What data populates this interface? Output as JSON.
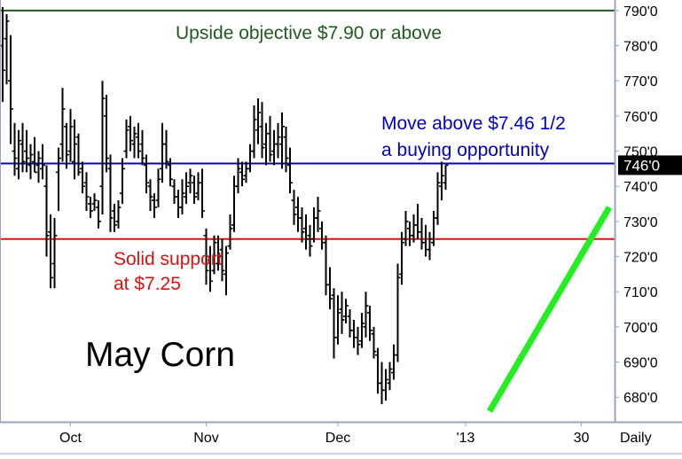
{
  "chart_data": {
    "type": "ohlc",
    "title": "May Corn",
    "y_axis": {
      "min": 673,
      "max": 793,
      "ticks": [
        {
          "value": 680,
          "label": "680'0"
        },
        {
          "value": 690,
          "label": "690'0"
        },
        {
          "value": 700,
          "label": "700'0"
        },
        {
          "value": 710,
          "label": "710'0"
        },
        {
          "value": 720,
          "label": "720'0"
        },
        {
          "value": 730,
          "label": "730'0"
        },
        {
          "value": 740,
          "label": "740'0"
        },
        {
          "value": 750,
          "label": "750'0"
        },
        {
          "value": 760,
          "label": "760'0"
        },
        {
          "value": 770,
          "label": "770'0"
        },
        {
          "value": 780,
          "label": "780'0"
        },
        {
          "value": 790,
          "label": "790'0"
        }
      ],
      "last_price_label": "746'0",
      "last_price": 746
    },
    "x_axis": {
      "frequency_label": "Daily",
      "labels": [
        {
          "bar": 17,
          "text": "Oct"
        },
        {
          "bar": 51,
          "text": "Nov"
        },
        {
          "bar": 84,
          "text": "Dec"
        },
        {
          "bar": 116,
          "text": "'13"
        },
        {
          "bar": 145,
          "text": "30"
        }
      ]
    },
    "horizontal_lines": [
      {
        "value": 790,
        "color": "#1e5a1e",
        "label": "Upside objective $7.90 or above"
      },
      {
        "value": 746.5,
        "color": "#0000c0",
        "label": "Move above $7.46 1/2\na buying opportunity"
      },
      {
        "value": 725,
        "color": "#e01010",
        "label": "Solid support\nat $7.25"
      }
    ],
    "trendline": {
      "color": "#22ee22",
      "from": {
        "bar": 122,
        "value": 676
      },
      "to": {
        "bar": 152,
        "value": 734
      }
    },
    "bars": [
      {
        "h": 791,
        "l": 764,
        "o": 780,
        "c": 773
      },
      {
        "h": 789,
        "l": 769,
        "o": 782,
        "c": 787
      },
      {
        "h": 783,
        "l": 752,
        "o": 770,
        "c": 762
      },
      {
        "h": 758,
        "l": 743,
        "o": 750,
        "c": 748
      },
      {
        "h": 756,
        "l": 742,
        "o": 745,
        "c": 753
      },
      {
        "h": 758,
        "l": 744,
        "o": 752,
        "c": 747
      },
      {
        "h": 756,
        "l": 744,
        "o": 750,
        "c": 748
      },
      {
        "h": 752,
        "l": 742,
        "o": 746,
        "c": 749
      },
      {
        "h": 754,
        "l": 744,
        "o": 747,
        "c": 744
      },
      {
        "h": 750,
        "l": 741,
        "o": 746,
        "c": 748
      },
      {
        "h": 752,
        "l": 742,
        "o": 745,
        "c": 746
      },
      {
        "h": 746,
        "l": 720,
        "o": 740,
        "c": 726
      },
      {
        "h": 732,
        "l": 711,
        "o": 727,
        "c": 714
      },
      {
        "h": 731,
        "l": 711,
        "o": 718,
        "c": 726
      },
      {
        "h": 751,
        "l": 733,
        "o": 744,
        "c": 748
      },
      {
        "h": 768,
        "l": 747,
        "o": 752,
        "c": 762
      },
      {
        "h": 758,
        "l": 745,
        "o": 757,
        "c": 749
      },
      {
        "h": 762,
        "l": 747,
        "o": 750,
        "c": 757
      },
      {
        "h": 759,
        "l": 742,
        "o": 747,
        "c": 752
      },
      {
        "h": 755,
        "l": 743,
        "o": 754,
        "c": 744
      },
      {
        "h": 747,
        "l": 738,
        "o": 745,
        "c": 740
      },
      {
        "h": 744,
        "l": 733,
        "o": 741,
        "c": 737
      },
      {
        "h": 737,
        "l": 731,
        "o": 735,
        "c": 733
      },
      {
        "h": 738,
        "l": 733,
        "o": 735,
        "c": 736
      },
      {
        "h": 736,
        "l": 728,
        "o": 734,
        "c": 730
      },
      {
        "h": 770,
        "l": 732,
        "o": 740,
        "c": 765
      },
      {
        "h": 766,
        "l": 744,
        "o": 760,
        "c": 748
      },
      {
        "h": 749,
        "l": 727,
        "o": 745,
        "c": 731
      },
      {
        "h": 735,
        "l": 727,
        "o": 733,
        "c": 729
      },
      {
        "h": 736,
        "l": 728,
        "o": 730,
        "c": 734
      },
      {
        "h": 748,
        "l": 735,
        "o": 738,
        "c": 745
      },
      {
        "h": 759,
        "l": 748,
        "o": 750,
        "c": 756
      },
      {
        "h": 760,
        "l": 750,
        "o": 757,
        "c": 753
      },
      {
        "h": 757,
        "l": 748,
        "o": 752,
        "c": 755
      },
      {
        "h": 758,
        "l": 748,
        "o": 754,
        "c": 750
      },
      {
        "h": 756,
        "l": 746,
        "o": 752,
        "c": 748
      },
      {
        "h": 749,
        "l": 738,
        "o": 746,
        "c": 741
      },
      {
        "h": 742,
        "l": 733,
        "o": 740,
        "c": 737
      },
      {
        "h": 738,
        "l": 731,
        "o": 736,
        "c": 734
      },
      {
        "h": 745,
        "l": 734,
        "o": 736,
        "c": 742
      },
      {
        "h": 758,
        "l": 741,
        "o": 745,
        "c": 752
      },
      {
        "h": 756,
        "l": 745,
        "o": 752,
        "c": 747
      },
      {
        "h": 748,
        "l": 740,
        "o": 746,
        "c": 742
      },
      {
        "h": 742,
        "l": 735,
        "o": 740,
        "c": 737
      },
      {
        "h": 739,
        "l": 731,
        "o": 737,
        "c": 734
      },
      {
        "h": 742,
        "l": 732,
        "o": 734,
        "c": 738
      },
      {
        "h": 744,
        "l": 735,
        "o": 737,
        "c": 740
      },
      {
        "h": 745,
        "l": 738,
        "o": 741,
        "c": 743
      },
      {
        "h": 743,
        "l": 735,
        "o": 741,
        "c": 737
      },
      {
        "h": 744,
        "l": 736,
        "o": 738,
        "c": 741
      },
      {
        "h": 745,
        "l": 731,
        "o": 741,
        "c": 733
      },
      {
        "h": 728,
        "l": 712,
        "o": 726,
        "c": 716
      },
      {
        "h": 723,
        "l": 710,
        "o": 719,
        "c": 713
      },
      {
        "h": 726,
        "l": 715,
        "o": 716,
        "c": 724
      },
      {
        "h": 726,
        "l": 716,
        "o": 718,
        "c": 720
      },
      {
        "h": 725,
        "l": 713,
        "o": 722,
        "c": 716
      },
      {
        "h": 723,
        "l": 709,
        "o": 715,
        "c": 721
      },
      {
        "h": 732,
        "l": 722,
        "o": 723,
        "c": 728
      },
      {
        "h": 743,
        "l": 727,
        "o": 729,
        "c": 740
      },
      {
        "h": 748,
        "l": 738,
        "o": 740,
        "c": 745
      },
      {
        "h": 747,
        "l": 740,
        "o": 744,
        "c": 742
      },
      {
        "h": 747,
        "l": 741,
        "o": 743,
        "c": 745
      },
      {
        "h": 752,
        "l": 744,
        "o": 745,
        "c": 750
      },
      {
        "h": 763,
        "l": 748,
        "o": 750,
        "c": 759
      },
      {
        "h": 765,
        "l": 752,
        "o": 756,
        "c": 761
      },
      {
        "h": 764,
        "l": 748,
        "o": 757,
        "c": 751
      },
      {
        "h": 758,
        "l": 746,
        "o": 752,
        "c": 755
      },
      {
        "h": 760,
        "l": 747,
        "o": 755,
        "c": 749
      },
      {
        "h": 756,
        "l": 746,
        "o": 750,
        "c": 752
      },
      {
        "h": 758,
        "l": 748,
        "o": 752,
        "c": 754
      },
      {
        "h": 761,
        "l": 745,
        "o": 752,
        "c": 757
      },
      {
        "h": 757,
        "l": 744,
        "o": 754,
        "c": 748
      },
      {
        "h": 751,
        "l": 738,
        "o": 746,
        "c": 741
      },
      {
        "h": 739,
        "l": 729,
        "o": 736,
        "c": 732
      },
      {
        "h": 737,
        "l": 727,
        "o": 734,
        "c": 731
      },
      {
        "h": 734,
        "l": 724,
        "o": 731,
        "c": 727
      },
      {
        "h": 732,
        "l": 722,
        "o": 728,
        "c": 725
      },
      {
        "h": 729,
        "l": 720,
        "o": 726,
        "c": 723
      },
      {
        "h": 734,
        "l": 724,
        "o": 725,
        "c": 731
      },
      {
        "h": 737,
        "l": 727,
        "o": 731,
        "c": 733
      },
      {
        "h": 730,
        "l": 722,
        "o": 728,
        "c": 724
      },
      {
        "h": 726,
        "l": 709,
        "o": 724,
        "c": 712
      },
      {
        "h": 717,
        "l": 705,
        "o": 712,
        "c": 708
      },
      {
        "h": 711,
        "l": 691,
        "o": 709,
        "c": 697
      },
      {
        "h": 709,
        "l": 695,
        "o": 697,
        "c": 704
      },
      {
        "h": 710,
        "l": 698,
        "o": 705,
        "c": 702
      },
      {
        "h": 708,
        "l": 701,
        "o": 703,
        "c": 706
      },
      {
        "h": 705,
        "l": 697,
        "o": 703,
        "c": 699
      },
      {
        "h": 702,
        "l": 694,
        "o": 699,
        "c": 697
      },
      {
        "h": 700,
        "l": 692,
        "o": 697,
        "c": 695
      },
      {
        "h": 704,
        "l": 694,
        "o": 696,
        "c": 701
      },
      {
        "h": 710,
        "l": 697,
        "o": 700,
        "c": 706
      },
      {
        "h": 706,
        "l": 696,
        "o": 704,
        "c": 699
      },
      {
        "h": 700,
        "l": 691,
        "o": 698,
        "c": 693
      },
      {
        "h": 694,
        "l": 681,
        "o": 692,
        "c": 684
      },
      {
        "h": 690,
        "l": 678,
        "o": 684,
        "c": 682
      },
      {
        "h": 688,
        "l": 679,
        "o": 682,
        "c": 685
      },
      {
        "h": 690,
        "l": 682,
        "o": 684,
        "c": 688
      },
      {
        "h": 695,
        "l": 685,
        "o": 687,
        "c": 692
      },
      {
        "h": 718,
        "l": 690,
        "o": 692,
        "c": 714
      },
      {
        "h": 727,
        "l": 712,
        "o": 715,
        "c": 724
      },
      {
        "h": 733,
        "l": 723,
        "o": 725,
        "c": 730
      },
      {
        "h": 730,
        "l": 723,
        "o": 728,
        "c": 726
      },
      {
        "h": 732,
        "l": 724,
        "o": 726,
        "c": 729
      },
      {
        "h": 735,
        "l": 725,
        "o": 729,
        "c": 727
      },
      {
        "h": 731,
        "l": 722,
        "o": 727,
        "c": 724
      },
      {
        "h": 729,
        "l": 720,
        "o": 724,
        "c": 722
      },
      {
        "h": 727,
        "l": 719,
        "o": 722,
        "c": 725
      },
      {
        "h": 733,
        "l": 723,
        "o": 724,
        "c": 731
      },
      {
        "h": 744,
        "l": 729,
        "o": 731,
        "c": 741
      },
      {
        "h": 747,
        "l": 736,
        "o": 740,
        "c": 743
      },
      {
        "h": 746,
        "l": 739,
        "o": 741,
        "c": 746
      }
    ]
  }
}
